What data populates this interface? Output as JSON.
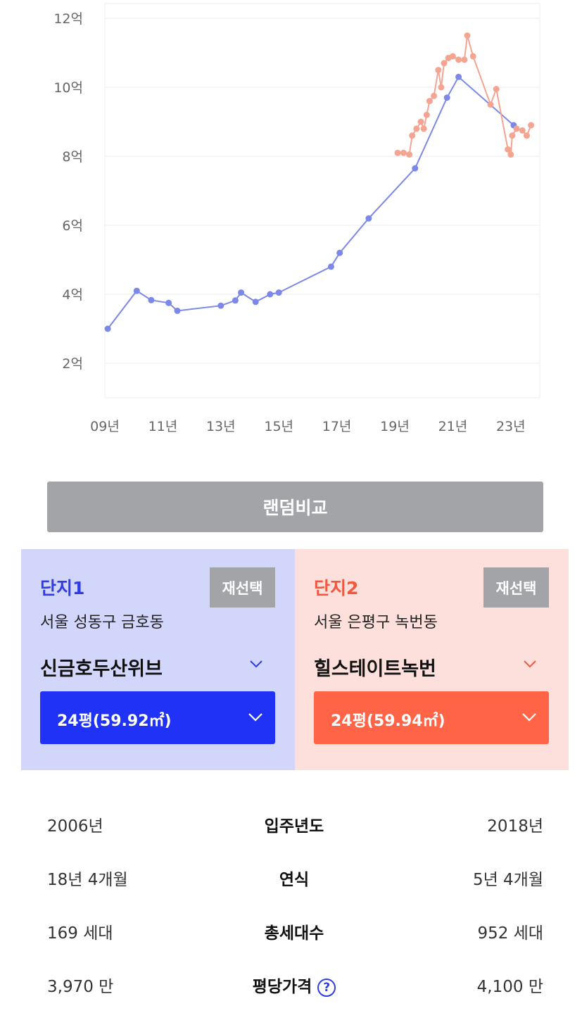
{
  "chart_data": {
    "type": "line",
    "y_ticks": [
      "12억",
      "10억",
      "8억",
      "6억",
      "4억",
      "2억"
    ],
    "x_ticks": [
      "09년",
      "11년",
      "13년",
      "15년",
      "17년",
      "19년",
      "21년",
      "23년"
    ],
    "ylim": [
      2,
      12
    ],
    "grid": true,
    "series": [
      {
        "color": "#7b88e8",
        "points": [
          [
            2009.1,
            3.0
          ],
          [
            2010.1,
            4.1
          ],
          [
            2010.6,
            3.83
          ],
          [
            2011.2,
            3.75
          ],
          [
            2011.5,
            3.52
          ],
          [
            2013.0,
            3.67
          ],
          [
            2013.5,
            3.82
          ],
          [
            2013.7,
            4.05
          ],
          [
            2014.2,
            3.78
          ],
          [
            2014.7,
            4.0
          ],
          [
            2015.0,
            4.05
          ],
          [
            2016.8,
            4.8
          ],
          [
            2017.1,
            5.2
          ],
          [
            2018.1,
            6.2
          ],
          [
            2019.7,
            7.65
          ],
          [
            2020.8,
            9.7
          ],
          [
            2021.2,
            10.3
          ],
          [
            2023.1,
            8.9
          ]
        ]
      },
      {
        "color": "#f4a592",
        "points": [
          [
            2019.1,
            8.1
          ],
          [
            2019.3,
            8.1
          ],
          [
            2019.5,
            8.05
          ],
          [
            2019.6,
            8.6
          ],
          [
            2019.75,
            8.8
          ],
          [
            2019.9,
            9.0
          ],
          [
            2020.0,
            8.8
          ],
          [
            2020.1,
            9.2
          ],
          [
            2020.2,
            9.6
          ],
          [
            2020.35,
            9.75
          ],
          [
            2020.5,
            10.5
          ],
          [
            2020.6,
            10.0
          ],
          [
            2020.7,
            10.7
          ],
          [
            2020.85,
            10.85
          ],
          [
            2021.0,
            10.9
          ],
          [
            2021.2,
            10.8
          ],
          [
            2021.4,
            10.8
          ],
          [
            2021.5,
            11.5
          ],
          [
            2021.7,
            10.9
          ],
          [
            2022.3,
            9.5
          ],
          [
            2022.5,
            9.95
          ],
          [
            2022.9,
            8.2
          ],
          [
            2023.0,
            8.05
          ],
          [
            2023.05,
            8.6
          ],
          [
            2023.2,
            8.8
          ],
          [
            2023.4,
            8.75
          ],
          [
            2023.55,
            8.6
          ],
          [
            2023.7,
            8.9
          ]
        ]
      }
    ]
  },
  "random_compare_label": "랜덤비교",
  "complex1": {
    "label": "단지1",
    "reselect": "재선택",
    "region": "서울 성동구 금호동",
    "name": "신금호두산위브",
    "size": "24평(59.92㎡)",
    "color": "#1f32f5"
  },
  "complex2": {
    "label": "단지2",
    "reselect": "재선택",
    "region": "서울 은평구 녹번동",
    "name": "힐스테이트녹번",
    "size": "24평(59.94㎡)",
    "color": "#ff6446"
  },
  "info": [
    {
      "left": "2006년",
      "label": "입주년도",
      "right": "2018년"
    },
    {
      "left": "18년 4개월",
      "label": "연식",
      "right": "5년 4개월"
    },
    {
      "left": "169 세대",
      "label": "총세대수",
      "right": "952 세대"
    },
    {
      "left": "3,970 만",
      "label": "평당가격",
      "right": "4,100 만"
    }
  ],
  "help_icon": "question-circle-icon",
  "help_glyph": "?"
}
